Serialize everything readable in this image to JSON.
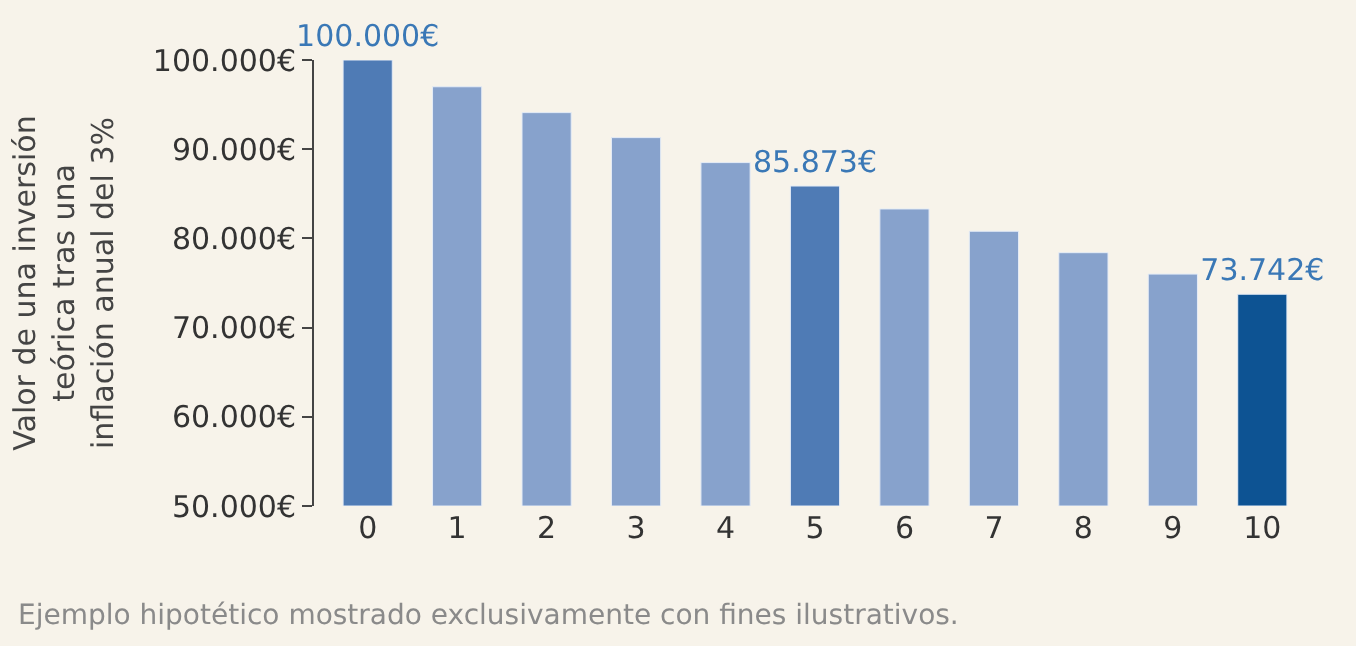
{
  "chart_data": {
    "type": "bar",
    "ylabel": "Valor de una inversión\nteórica tras una\ninflación anual del 3%",
    "categories": [
      "0",
      "1",
      "2",
      "3",
      "4",
      "5",
      "6",
      "7",
      "8",
      "9",
      "10"
    ],
    "values": [
      100000,
      97000,
      94100,
      91300,
      88500,
      85873,
      83300,
      80800,
      78400,
      76000,
      73742
    ],
    "colors": [
      "#4f7bb5",
      "#87a2cc",
      "#87a2cc",
      "#87a2cc",
      "#87a2cc",
      "#4f7bb5",
      "#87a2cc",
      "#87a2cc",
      "#87a2cc",
      "#87a2cc",
      "#0d5393"
    ],
    "value_labels": [
      "100.000€",
      null,
      null,
      null,
      null,
      "85.873€",
      null,
      null,
      null,
      null,
      "73.742€"
    ],
    "ylim": [
      50000,
      100000
    ],
    "yticks": [
      {
        "value": 50000,
        "label": "50.000€"
      },
      {
        "value": 60000,
        "label": "60.000€"
      },
      {
        "value": 70000,
        "label": "70.000€"
      },
      {
        "value": 80000,
        "label": "80.000€"
      },
      {
        "value": 90000,
        "label": "90.000€"
      },
      {
        "value": 100000,
        "label": "100.000€"
      }
    ],
    "grid": false,
    "annotations": [
      "Ejemplo hipotético mostrado exclusivamente con fines ilustrativos."
    ]
  }
}
